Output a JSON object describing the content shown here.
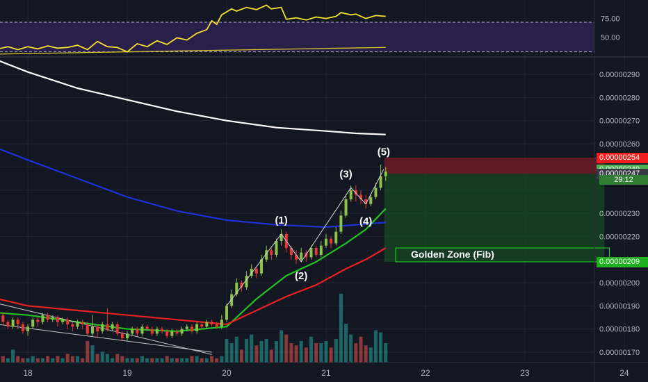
{
  "colors": {
    "background": "#131722",
    "grid": "#1f2433",
    "axis_text": "#b2b5be",
    "candle_up": "#8bc34a",
    "candle_down": "#e53935",
    "vol_up": "#26a69a",
    "vol_down": "#ef5350",
    "ma_white": "#ffffff",
    "ma_blue": "#1e2fd6",
    "ma_green": "#22c322",
    "ma_red": "#e82020",
    "rsi_line": "#f5e12e",
    "rsi_band": "#2a1f4a",
    "stop_zone": "#7a1c24",
    "target_zone": "#174d24",
    "golden_zone_border": "#22dd22"
  },
  "rsi_axis": {
    "ticks": [
      "75.00",
      "50.00"
    ]
  },
  "price_axis": {
    "ticks": [
      "0.00000290",
      "0.00000280",
      "0.00000270",
      "0.00000260",
      "0.00000230",
      "0.00000220",
      "0.00000200",
      "0.00000190",
      "0.00000180",
      "0.00000170"
    ]
  },
  "price_badges": [
    {
      "label": "0.00000254",
      "color": "#f21e1e",
      "text_color": "#ffffff"
    },
    {
      "label": "0.00000249",
      "color": "#4caf50",
      "text_color": "#ffffff"
    },
    {
      "label": "0.00000247",
      "color": "#363a45",
      "text_color": "#ffffff"
    },
    {
      "label": "0.00000209",
      "color": "#1fb01f",
      "text_color": "#ffffff"
    }
  ],
  "countdown": "29:12",
  "time_axis": {
    "labels": [
      "18",
      "19",
      "20",
      "21",
      "22",
      "23",
      "24"
    ]
  },
  "annotations": {
    "wave_labels": [
      "(1)",
      "(2)",
      "(3)",
      "(4)",
      "(5)"
    ],
    "golden_zone": "Golden Zone (Fib)"
  },
  "chart_data": {
    "type": "candlestick",
    "symbol_scale": "price x 1e-9",
    "x_range": [
      17.7,
      24.6
    ],
    "y_range": [
      160,
      305
    ],
    "rsi_range": [
      25,
      100
    ],
    "rsi_guides": [
      70,
      30
    ],
    "candles": [
      [
        17.7,
        187,
        186,
        188,
        183
      ],
      [
        17.75,
        186,
        183,
        187,
        182
      ],
      [
        17.8,
        183,
        181,
        184,
        180
      ],
      [
        17.85,
        181,
        184,
        185,
        180
      ],
      [
        17.9,
        184,
        182,
        185,
        180
      ],
      [
        17.95,
        182,
        179,
        183,
        178
      ],
      [
        18.0,
        179,
        181,
        182,
        177
      ],
      [
        18.05,
        181,
        184,
        185,
        180
      ],
      [
        18.1,
        184,
        183,
        185,
        181
      ],
      [
        18.15,
        183,
        186,
        187,
        182
      ],
      [
        18.2,
        186,
        184,
        187,
        183
      ],
      [
        18.25,
        184,
        185,
        186,
        183
      ],
      [
        18.3,
        185,
        183,
        186,
        181
      ],
      [
        18.35,
        183,
        184,
        185,
        182
      ],
      [
        18.4,
        184,
        182,
        185,
        180
      ],
      [
        18.45,
        182,
        181,
        183,
        179
      ],
      [
        18.5,
        181,
        183,
        184,
        180
      ],
      [
        18.55,
        183,
        182,
        184,
        180
      ],
      [
        18.6,
        182,
        178,
        183,
        177
      ],
      [
        18.65,
        178,
        181,
        186,
        177
      ],
      [
        18.7,
        181,
        179,
        182,
        176
      ],
      [
        18.75,
        179,
        182,
        183,
        178
      ],
      [
        18.8,
        182,
        180,
        189,
        179
      ],
      [
        18.85,
        180,
        182,
        183,
        179
      ],
      [
        18.9,
        182,
        178,
        183,
        177
      ],
      [
        18.95,
        178,
        176,
        179,
        175
      ],
      [
        19.0,
        176,
        178,
        179,
        175
      ],
      [
        19.05,
        178,
        180,
        181,
        177
      ],
      [
        19.1,
        180,
        178,
        181,
        177
      ],
      [
        19.15,
        178,
        181,
        182,
        177
      ],
      [
        19.2,
        181,
        180,
        182,
        179
      ],
      [
        19.25,
        180,
        178,
        181,
        177
      ],
      [
        19.3,
        178,
        180,
        181,
        177
      ],
      [
        19.35,
        180,
        179,
        181,
        178
      ],
      [
        19.4,
        179,
        177,
        180,
        176
      ],
      [
        19.45,
        177,
        179,
        180,
        176
      ],
      [
        19.5,
        179,
        178,
        180,
        177
      ],
      [
        19.55,
        178,
        180,
        181,
        177
      ],
      [
        19.6,
        180,
        181,
        182,
        179
      ],
      [
        19.65,
        181,
        179,
        182,
        178
      ],
      [
        19.7,
        179,
        182,
        183,
        178
      ],
      [
        19.75,
        182,
        181,
        183,
        180
      ],
      [
        19.8,
        181,
        183,
        184,
        180
      ],
      [
        19.85,
        183,
        182,
        184,
        181
      ],
      [
        19.9,
        182,
        181,
        183,
        180
      ],
      [
        19.95,
        181,
        184,
        186,
        180
      ],
      [
        20.0,
        184,
        190,
        191,
        183
      ],
      [
        20.05,
        190,
        195,
        197,
        189
      ],
      [
        20.1,
        195,
        200,
        202,
        194
      ],
      [
        20.15,
        200,
        198,
        201,
        196
      ],
      [
        20.2,
        198,
        203,
        205,
        197
      ],
      [
        20.25,
        203,
        206,
        208,
        202
      ],
      [
        20.3,
        206,
        204,
        207,
        202
      ],
      [
        20.35,
        204,
        210,
        212,
        203
      ],
      [
        20.4,
        210,
        214,
        216,
        209
      ],
      [
        20.45,
        214,
        212,
        215,
        210
      ],
      [
        20.5,
        212,
        218,
        219,
        211
      ],
      [
        20.55,
        218,
        221,
        223,
        216
      ],
      [
        20.6,
        221,
        215,
        222,
        213
      ],
      [
        20.65,
        215,
        212,
        216,
        210
      ],
      [
        20.7,
        212,
        210,
        214,
        208
      ],
      [
        20.75,
        210,
        213,
        215,
        209
      ],
      [
        20.8,
        213,
        211,
        214,
        209
      ],
      [
        20.85,
        211,
        215,
        216,
        210
      ],
      [
        20.9,
        215,
        212,
        216,
        211
      ],
      [
        20.95,
        212,
        216,
        218,
        211
      ],
      [
        21.0,
        216,
        219,
        221,
        215
      ],
      [
        21.05,
        219,
        217,
        220,
        215
      ],
      [
        21.1,
        217,
        222,
        224,
        216
      ],
      [
        21.15,
        222,
        229,
        231,
        221
      ],
      [
        21.2,
        229,
        236,
        238,
        228
      ],
      [
        21.25,
        236,
        240,
        242,
        235
      ],
      [
        21.3,
        240,
        238,
        242,
        235
      ],
      [
        21.35,
        238,
        236,
        240,
        234
      ],
      [
        21.4,
        236,
        234,
        238,
        232
      ],
      [
        21.45,
        234,
        237,
        238,
        233
      ],
      [
        21.5,
        237,
        241,
        243,
        236
      ],
      [
        21.55,
        241,
        246,
        251,
        240
      ],
      [
        21.6,
        246,
        248,
        250,
        244
      ]
    ],
    "volume": [
      [
        17.7,
        4,
        1
      ],
      [
        17.75,
        3,
        0
      ],
      [
        17.8,
        2,
        1
      ],
      [
        17.85,
        6,
        1
      ],
      [
        17.9,
        3,
        0
      ],
      [
        17.95,
        2,
        0
      ],
      [
        18.0,
        2,
        1
      ],
      [
        18.05,
        3,
        1
      ],
      [
        18.1,
        2,
        0
      ],
      [
        18.15,
        2,
        1
      ],
      [
        18.2,
        3,
        0
      ],
      [
        18.25,
        2,
        1
      ],
      [
        18.3,
        3,
        0
      ],
      [
        18.35,
        2,
        1
      ],
      [
        18.4,
        4,
        0
      ],
      [
        18.45,
        3,
        0
      ],
      [
        18.5,
        3,
        1
      ],
      [
        18.55,
        2,
        0
      ],
      [
        18.6,
        10,
        0
      ],
      [
        18.65,
        8,
        1
      ],
      [
        18.7,
        4,
        0
      ],
      [
        18.75,
        5,
        1
      ],
      [
        18.8,
        4,
        1
      ],
      [
        18.85,
        2,
        1
      ],
      [
        18.9,
        4,
        0
      ],
      [
        18.95,
        3,
        0
      ],
      [
        19.0,
        2,
        1
      ],
      [
        19.05,
        2,
        1
      ],
      [
        19.1,
        2,
        0
      ],
      [
        19.15,
        3,
        1
      ],
      [
        19.2,
        2,
        1
      ],
      [
        19.25,
        2,
        0
      ],
      [
        19.3,
        2,
        1
      ],
      [
        19.35,
        2,
        1
      ],
      [
        19.4,
        3,
        0
      ],
      [
        19.45,
        2,
        1
      ],
      [
        19.5,
        2,
        0
      ],
      [
        19.55,
        2,
        1
      ],
      [
        19.6,
        2,
        1
      ],
      [
        19.65,
        3,
        0
      ],
      [
        19.7,
        3,
        1
      ],
      [
        19.75,
        2,
        0
      ],
      [
        19.8,
        2,
        1
      ],
      [
        19.85,
        3,
        0
      ],
      [
        19.9,
        2,
        0
      ],
      [
        19.95,
        3,
        1
      ],
      [
        20.0,
        11,
        1
      ],
      [
        20.05,
        9,
        1
      ],
      [
        20.1,
        12,
        1
      ],
      [
        20.15,
        6,
        0
      ],
      [
        20.2,
        11,
        1
      ],
      [
        20.25,
        13,
        1
      ],
      [
        20.3,
        8,
        0
      ],
      [
        20.35,
        10,
        1
      ],
      [
        20.4,
        11,
        1
      ],
      [
        20.45,
        6,
        0
      ],
      [
        20.5,
        10,
        1
      ],
      [
        20.55,
        15,
        1
      ],
      [
        20.6,
        13,
        0
      ],
      [
        20.65,
        9,
        0
      ],
      [
        20.7,
        8,
        0
      ],
      [
        20.75,
        10,
        1
      ],
      [
        20.8,
        7,
        0
      ],
      [
        20.85,
        12,
        1
      ],
      [
        20.9,
        9,
        0
      ],
      [
        20.95,
        9,
        1
      ],
      [
        21.0,
        10,
        1
      ],
      [
        21.05,
        7,
        0
      ],
      [
        21.1,
        11,
        1
      ],
      [
        21.15,
        32,
        1
      ],
      [
        21.2,
        18,
        1
      ],
      [
        21.25,
        13,
        1
      ],
      [
        21.3,
        9,
        0
      ],
      [
        21.35,
        12,
        0
      ],
      [
        21.4,
        8,
        0
      ],
      [
        21.45,
        7,
        1
      ],
      [
        21.5,
        15,
        1
      ],
      [
        21.55,
        14,
        1
      ],
      [
        21.6,
        9,
        1
      ]
    ],
    "ma_lines": [
      {
        "color": "#ffffff",
        "points": [
          [
            17.7,
            296
          ],
          [
            18.0,
            291
          ],
          [
            18.5,
            284
          ],
          [
            19.0,
            279
          ],
          [
            19.5,
            274
          ],
          [
            20.0,
            270
          ],
          [
            20.5,
            267
          ],
          [
            21.0,
            265.5
          ],
          [
            21.3,
            264.5
          ],
          [
            21.6,
            264
          ]
        ]
      },
      {
        "color": "#1e2fd6",
        "points": [
          [
            17.7,
            258
          ],
          [
            18.0,
            253
          ],
          [
            18.5,
            245
          ],
          [
            19.0,
            237
          ],
          [
            19.5,
            231
          ],
          [
            20.0,
            227
          ],
          [
            20.5,
            225
          ],
          [
            21.0,
            224
          ],
          [
            21.3,
            225
          ],
          [
            21.6,
            226
          ]
        ]
      },
      {
        "color": "#22c322",
        "points": [
          [
            17.7,
            187
          ],
          [
            18.0,
            186
          ],
          [
            18.5,
            183
          ],
          [
            19.0,
            180
          ],
          [
            19.5,
            179
          ],
          [
            20.0,
            181
          ],
          [
            20.3,
            193
          ],
          [
            20.6,
            203
          ],
          [
            20.9,
            209
          ],
          [
            21.2,
            217
          ],
          [
            21.4,
            223
          ],
          [
            21.6,
            232
          ]
        ]
      },
      {
        "color": "#e82020",
        "points": [
          [
            17.7,
            193
          ],
          [
            18.0,
            190
          ],
          [
            18.5,
            188
          ],
          [
            19.0,
            186
          ],
          [
            19.5,
            184
          ],
          [
            20.0,
            182
          ],
          [
            20.3,
            188
          ],
          [
            20.6,
            194
          ],
          [
            20.9,
            199
          ],
          [
            21.2,
            206
          ],
          [
            21.4,
            210
          ],
          [
            21.6,
            215
          ]
        ]
      }
    ],
    "trendlines": [
      {
        "color": "#c8c8c8",
        "points": [
          [
            17.7,
            191
          ],
          [
            19.85,
            169
          ]
        ]
      },
      {
        "color": "#c8c8c8",
        "points": [
          [
            17.7,
            182
          ],
          [
            19.85,
            170
          ]
        ]
      }
    ],
    "wave_path": [
      [
        20.0,
        190
      ],
      [
        20.55,
        221
      ],
      [
        20.75,
        209
      ],
      [
        21.25,
        241
      ],
      [
        21.4,
        234
      ],
      [
        21.58,
        249
      ]
    ],
    "wave_label_positions": [
      [
        20.55,
        225.5
      ],
      [
        20.75,
        201.5
      ],
      [
        21.2,
        245.5
      ],
      [
        21.4,
        225
      ],
      [
        21.58,
        255
      ]
    ],
    "rsi": [
      [
        17.7,
        34
      ],
      [
        17.8,
        37
      ],
      [
        17.9,
        33
      ],
      [
        18.0,
        37
      ],
      [
        18.1,
        34
      ],
      [
        18.2,
        38
      ],
      [
        18.3,
        35
      ],
      [
        18.4,
        36
      ],
      [
        18.5,
        39
      ],
      [
        18.6,
        33
      ],
      [
        18.7,
        44
      ],
      [
        18.8,
        37
      ],
      [
        18.9,
        36
      ],
      [
        19.0,
        30
      ],
      [
        19.1,
        41
      ],
      [
        19.2,
        37
      ],
      [
        19.3,
        45
      ],
      [
        19.4,
        40
      ],
      [
        19.5,
        49
      ],
      [
        19.6,
        46
      ],
      [
        19.7,
        55
      ],
      [
        19.8,
        60
      ],
      [
        19.85,
        72
      ],
      [
        19.9,
        67
      ],
      [
        19.95,
        80
      ],
      [
        20.0,
        84
      ],
      [
        20.05,
        88
      ],
      [
        20.1,
        85
      ],
      [
        20.2,
        90
      ],
      [
        20.3,
        87
      ],
      [
        20.4,
        93
      ],
      [
        20.45,
        88
      ],
      [
        20.55,
        90
      ],
      [
        20.6,
        74
      ],
      [
        20.7,
        76
      ],
      [
        20.8,
        73
      ],
      [
        20.9,
        77
      ],
      [
        21.0,
        75
      ],
      [
        21.1,
        78
      ],
      [
        21.15,
        83
      ],
      [
        21.25,
        80
      ],
      [
        21.3,
        81
      ],
      [
        21.4,
        75
      ],
      [
        21.5,
        79
      ],
      [
        21.6,
        78
      ]
    ],
    "rsi_trend": [
      [
        17.7,
        27
      ],
      [
        21.6,
        36
      ]
    ],
    "position": {
      "entry": 247,
      "stop": 254,
      "target": 209,
      "x_start": 21.6,
      "x_end": 23.8
    },
    "golden_zone": {
      "x_start": 21.7,
      "x_end": 23.85,
      "y_top": 215,
      "y_bottom": 209
    }
  }
}
